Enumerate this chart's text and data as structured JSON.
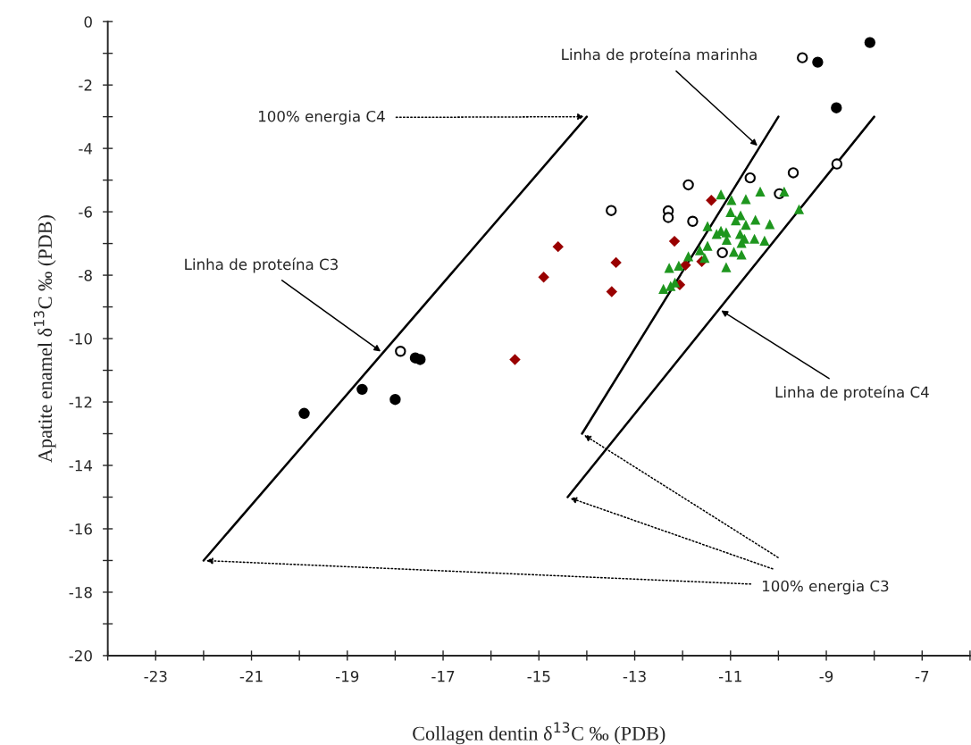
{
  "chart_data": {
    "type": "scatter",
    "xlabel": "Collagen dentin δ$^{13}$C ‰ (PDB)",
    "ylabel": "Apatite enamel δ$^{13}$C ‰ (PDB)",
    "xlim": [
      -24,
      -6
    ],
    "ylim": [
      -20,
      0
    ],
    "xticks": [
      {
        "value": -24,
        "label": null
      },
      -23,
      {
        "value": -22,
        "label": null
      },
      -21,
      {
        "value": -20,
        "label": null
      },
      -19,
      {
        "value": -18,
        "label": null
      },
      -17,
      {
        "value": -16,
        "label": null
      },
      -15,
      {
        "value": -14,
        "label": null
      },
      -13,
      {
        "value": -12,
        "label": null
      },
      -11,
      {
        "value": -10,
        "label": null
      },
      -9,
      {
        "value": -8,
        "label": null
      },
      -7,
      {
        "value": -6,
        "label": null
      }
    ],
    "yticks": [
      -20,
      {
        "value": -19,
        "label": null
      },
      -18,
      {
        "value": -17,
        "label": null
      },
      -16,
      {
        "value": -15,
        "label": null
      },
      -14,
      {
        "value": -13,
        "label": null
      },
      -12,
      {
        "value": -11,
        "label": null
      },
      -10,
      {
        "value": -9,
        "label": null
      },
      -8,
      {
        "value": -7,
        "label": null
      },
      -6,
      {
        "value": -5,
        "label": null
      },
      -4,
      {
        "value": -3,
        "label": null
      },
      -2,
      {
        "value": -1,
        "label": null
      },
      0
    ],
    "grid": false,
    "legend": false,
    "series": [
      {
        "type": "line",
        "color": "#000000",
        "line_style": "solid",
        "marker": "none",
        "x": [
          -22,
          -14
        ],
        "values": [
          -17,
          -3
        ]
      },
      {
        "type": "line",
        "color": "#000000",
        "line_style": "solid",
        "marker": "none",
        "x": [
          -14.1,
          -10
        ],
        "values": [
          -13,
          -3
        ]
      },
      {
        "type": "line",
        "color": "#000000",
        "line_style": "solid",
        "marker": "none",
        "x": [
          -14.4,
          -8
        ],
        "values": [
          -15,
          -3
        ]
      },
      {
        "type": "scatter",
        "color": "#000000",
        "marker": "circle",
        "x": [
          -8.09,
          -9.18,
          -8.79,
          -17.58,
          -17.48,
          -18.69,
          -18.0,
          -19.9
        ],
        "values": [
          -0.66,
          -1.28,
          -2.72,
          -10.61,
          -10.66,
          -11.6,
          -11.92,
          -12.36
        ]
      },
      {
        "type": "scatter",
        "color": "#ffffff",
        "marker": "circle",
        "x": [
          -9.5,
          -8.78,
          -9.69,
          -10.59,
          -11.88,
          -13.49,
          -12.3,
          -12.3,
          -11.79,
          -9.98,
          -11.17,
          -17.89
        ],
        "values": [
          -1.14,
          -4.49,
          -4.77,
          -4.93,
          -5.15,
          -5.96,
          -5.97,
          -6.18,
          -6.3,
          -5.43,
          -7.29,
          -10.4
        ]
      },
      {
        "type": "scatter",
        "color": "#990000",
        "marker": "diamond",
        "x": [
          -11.4,
          -12.17,
          -14.6,
          -13.39,
          -14.9,
          -13.48,
          -11.6,
          -11.94,
          -12.06,
          -15.5
        ],
        "values": [
          -5.64,
          -6.93,
          -7.1,
          -7.6,
          -8.06,
          -8.52,
          -7.57,
          -7.68,
          -8.3,
          -10.66
        ]
      },
      {
        "type": "scatter",
        "color": "#1e961e",
        "marker": "triangle",
        "x": [
          -11.2,
          -10.98,
          -10.68,
          -10.38,
          -9.88,
          -9.57,
          -11.0,
          -10.79,
          -10.89,
          -10.48,
          -10.18,
          -11.48,
          -10.68,
          -11.2,
          -11.09,
          -11.29,
          -10.8,
          -11.08,
          -10.71,
          -10.5,
          -10.29,
          -10.77,
          -11.48,
          -11.64,
          -10.93,
          -10.77,
          -11.88,
          -11.54,
          -12.08,
          -12.28,
          -11.09,
          -12.16,
          -12.25,
          -12.4
        ],
        "values": [
          -5.45,
          -5.63,
          -5.6,
          -5.36,
          -5.36,
          -5.92,
          -6.01,
          -6.11,
          -6.27,
          -6.25,
          -6.39,
          -6.45,
          -6.41,
          -6.6,
          -6.65,
          -6.7,
          -6.7,
          -6.88,
          -6.85,
          -6.85,
          -6.91,
          -6.98,
          -7.07,
          -7.21,
          -7.26,
          -7.35,
          -7.4,
          -7.45,
          -7.7,
          -7.77,
          -7.75,
          -8.23,
          -8.34,
          -8.43
        ]
      }
    ],
    "annotations": [
      {
        "text": "100% energia C4",
        "x": -14,
        "y": -3
      },
      {
        "text": "Linha de proteína marinha",
        "x": -10.4,
        "y": -3.97
      },
      {
        "text": "Linha de proteína C3",
        "x": -18.26,
        "y": -10.45
      },
      {
        "text": "Linha de proteína C4",
        "x": -11.24,
        "y": -9.07
      },
      {
        "text": "100% energia C3",
        "x": -22,
        "y": -17
      }
    ]
  }
}
